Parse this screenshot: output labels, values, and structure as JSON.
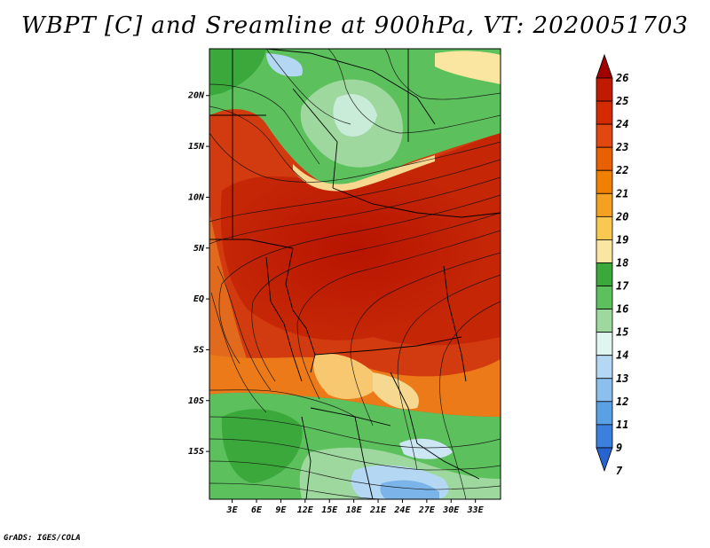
{
  "title": "WBPT [C] and Sreamline at 900hPa, VT: 2020051703",
  "credit": "GrADS: IGES/COLA",
  "map": {
    "lat_labels": [
      "20N",
      "15N",
      "10N",
      "5N",
      "EQ",
      "5S",
      "10S",
      "15S"
    ],
    "lat_values": [
      20,
      15,
      10,
      5,
      0,
      -5,
      -10,
      -15
    ],
    "lon_labels": [
      "3E",
      "6E",
      "9E",
      "12E",
      "15E",
      "18E",
      "21E",
      "24E",
      "27E",
      "30E",
      "33E"
    ],
    "lon_values": [
      3,
      6,
      9,
      12,
      15,
      18,
      21,
      24,
      27,
      30,
      33
    ],
    "lat_range": [
      -19.7,
      24.6
    ],
    "lon_range": [
      0.2,
      36.1
    ]
  },
  "colorbar": {
    "labels": [
      "26",
      "25",
      "24",
      "23",
      "22",
      "21",
      "20",
      "19",
      "18",
      "17",
      "16",
      "15",
      "14",
      "13",
      "12",
      "11",
      "9",
      "7"
    ],
    "colors": [
      "#a00000",
      "#c01a00",
      "#d42a00",
      "#e04810",
      "#e86000",
      "#f08000",
      "#f4a020",
      "#f8c850",
      "#fae6a0",
      "#3aa83a",
      "#5cc05c",
      "#9ed89e",
      "#e0f4f0",
      "#b4d8f4",
      "#8cc0ec",
      "#5aa0e4",
      "#3a80dc",
      "#2864d0"
    ]
  }
}
